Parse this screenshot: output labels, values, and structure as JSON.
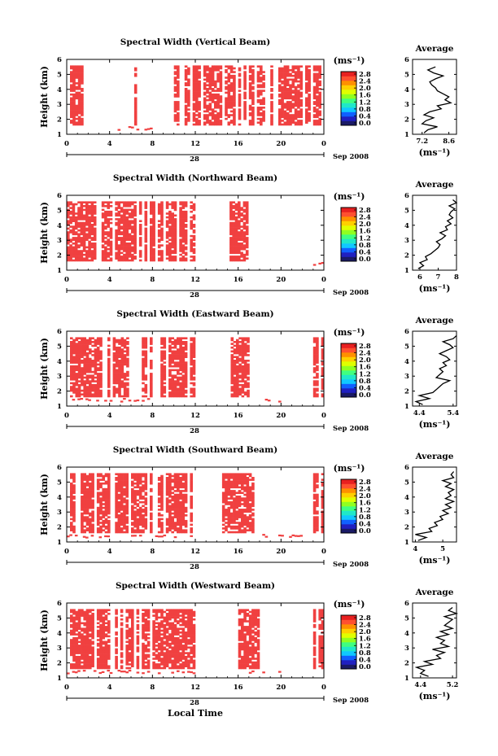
{
  "figure": {
    "xlabel": "Local Time",
    "date_label": "Sep 2008",
    "day_tick_label": "28",
    "unit_label": "(ms⁻¹)"
  },
  "chart_data": [
    {
      "type": "heatmap",
      "title": "Spectral Width (Vertical Beam)",
      "xlabel": "",
      "ylabel": "Height (km)",
      "x_ticks": [
        "0",
        "4",
        "8",
        "12",
        "16",
        "20",
        "0"
      ],
      "y_ticks": [
        "1",
        "2",
        "3",
        "4",
        "5",
        "6"
      ],
      "xlim": [
        0,
        24
      ],
      "ylim": [
        1,
        6
      ],
      "grid": false,
      "colorbar": {
        "ticks": [
          "0.0",
          "0.4",
          "0.8",
          "1.2",
          "1.6",
          "2.0",
          "2.4",
          "2.8"
        ],
        "range": [
          0.0,
          2.8
        ]
      },
      "dominant_value": 2.8,
      "echo_time_blocks_hr": [
        [
          0.3,
          1.5
        ],
        [
          6.3,
          6.5
        ],
        [
          10.0,
          10.5
        ],
        [
          11.0,
          18.5
        ],
        [
          19.0,
          24.0
        ]
      ],
      "low_height_echoes_hr": [
        [
          4.5,
          8.0
        ]
      ],
      "average": {
        "title": "Average",
        "xlabel": "(ms⁻¹)",
        "ylabel": "",
        "x_ticks": [
          "7.2",
          "8.6"
        ],
        "xlim": [
          6.7,
          9.0
        ],
        "ylim": [
          1,
          6
        ],
        "height_km": [
          1.1,
          1.3,
          1.5,
          1.7,
          1.9,
          2.1,
          2.3,
          2.5,
          2.7,
          2.9,
          3.1,
          3.3,
          3.5,
          3.7,
          3.9,
          4.1,
          4.3,
          4.5,
          4.7,
          4.9,
          5.1,
          5.3,
          5.5
        ],
        "mean_width": [
          7.3,
          7.5,
          8.0,
          7.2,
          7.4,
          7.8,
          7.3,
          7.6,
          8.2,
          8.0,
          8.7,
          8.4,
          8.6,
          8.3,
          8.0,
          7.9,
          7.7,
          7.6,
          7.9,
          8.3,
          7.8,
          7.5,
          7.9
        ]
      }
    },
    {
      "type": "heatmap",
      "title": "Spectral Width (Northward Beam)",
      "xlabel": "",
      "ylabel": "Height (km)",
      "x_ticks": [
        "0",
        "4",
        "8",
        "12",
        "16",
        "20",
        "0"
      ],
      "y_ticks": [
        "1",
        "2",
        "3",
        "4",
        "5",
        "6"
      ],
      "xlim": [
        0,
        24
      ],
      "ylim": [
        1,
        6
      ],
      "grid": false,
      "colorbar": {
        "ticks": [
          "0.0",
          "0.4",
          "0.8",
          "1.2",
          "1.6",
          "2.0",
          "2.4",
          "2.8"
        ],
        "range": [
          0.0,
          2.8
        ]
      },
      "dominant_value": 2.8,
      "echo_time_blocks_hr": [
        [
          0.0,
          3.5
        ],
        [
          3.5,
          7.0
        ],
        [
          7.0,
          12.0
        ],
        [
          15.2,
          16.8
        ]
      ],
      "low_height_echoes_hr": [
        [
          23.0,
          24.0
        ]
      ],
      "average": {
        "title": "Average",
        "xlabel": "(ms⁻¹)",
        "ylabel": "",
        "x_ticks": [
          "6",
          "7",
          "8"
        ],
        "xlim": [
          5.6,
          8.0
        ],
        "ylim": [
          1,
          6
        ],
        "height_km": [
          1.1,
          1.3,
          1.5,
          1.7,
          1.9,
          2.1,
          2.3,
          2.5,
          2.7,
          2.9,
          3.1,
          3.3,
          3.5,
          3.7,
          3.9,
          4.1,
          4.3,
          4.5,
          4.7,
          4.9,
          5.1,
          5.3,
          5.5,
          5.7
        ],
        "mean_width": [
          5.9,
          6.2,
          6.0,
          6.4,
          6.3,
          6.6,
          6.8,
          7.0,
          7.1,
          6.9,
          7.2,
          7.4,
          7.1,
          7.5,
          7.4,
          7.7,
          7.5,
          7.8,
          7.6,
          7.7,
          7.9,
          7.6,
          8.0,
          7.8
        ]
      }
    },
    {
      "type": "heatmap",
      "title": "Spectral Width (Eastward Beam)",
      "xlabel": "",
      "ylabel": "Height (km)",
      "x_ticks": [
        "0",
        "4",
        "8",
        "12",
        "16",
        "20",
        "0"
      ],
      "y_ticks": [
        "1",
        "2",
        "3",
        "4",
        "5",
        "6"
      ],
      "xlim": [
        0,
        24
      ],
      "ylim": [
        1,
        6
      ],
      "grid": false,
      "colorbar": {
        "ticks": [
          "0.0",
          "0.4",
          "0.8",
          "1.2",
          "1.6",
          "2.0",
          "2.4",
          "2.8"
        ],
        "range": [
          0.0,
          2.8
        ]
      },
      "dominant_value": 2.8,
      "echo_time_blocks_hr": [
        [
          0.3,
          6.0
        ],
        [
          7.0,
          11.8
        ],
        [
          15.3,
          17.0
        ],
        [
          23.0,
          24.0
        ]
      ],
      "low_height_echoes_hr": [
        [
          0.5,
          8.0
        ],
        [
          16.0,
          20.0
        ]
      ],
      "average": {
        "title": "Average",
        "xlabel": "(ms⁻¹)",
        "ylabel": "",
        "x_ticks": [
          "4.4",
          "5.4"
        ],
        "xlim": [
          4.2,
          5.5
        ],
        "ylim": [
          1,
          6
        ],
        "height_km": [
          1.1,
          1.3,
          1.5,
          1.7,
          1.9,
          2.1,
          2.3,
          2.5,
          2.7,
          2.9,
          3.1,
          3.3,
          3.5,
          3.7,
          3.9,
          4.1,
          4.3,
          4.5,
          4.7,
          4.9,
          5.1,
          5.3,
          5.5,
          5.7
        ],
        "mean_width": [
          4.5,
          4.3,
          4.7,
          4.4,
          4.8,
          4.9,
          5.0,
          5.1,
          5.3,
          4.9,
          5.0,
          5.1,
          5.0,
          5.2,
          5.1,
          5.3,
          5.2,
          5.0,
          5.2,
          5.4,
          5.3,
          5.1,
          5.4,
          5.5
        ]
      }
    },
    {
      "type": "heatmap",
      "title": "Spectral Width (Southward Beam)",
      "xlabel": "",
      "ylabel": "Height (km)",
      "x_ticks": [
        "0",
        "4",
        "8",
        "12",
        "16",
        "20",
        "0"
      ],
      "y_ticks": [
        "1",
        "2",
        "3",
        "4",
        "5",
        "6"
      ],
      "xlim": [
        0,
        24
      ],
      "ylim": [
        1,
        6
      ],
      "grid": false,
      "colorbar": {
        "ticks": [
          "0.0",
          "0.4",
          "0.8",
          "1.2",
          "1.6",
          "2.0",
          "2.4",
          "2.8"
        ],
        "range": [
          0.0,
          2.8
        ]
      },
      "dominant_value": 2.8,
      "echo_time_blocks_hr": [
        [
          0.3,
          4.0
        ],
        [
          4.5,
          8.0
        ],
        [
          8.5,
          12.0
        ],
        [
          14.5,
          17.5
        ],
        [
          23.0,
          24.0
        ]
      ],
      "low_height_echoes_hr": [
        [
          0.0,
          12.0
        ],
        [
          17.5,
          22.0
        ]
      ],
      "average": {
        "title": "Average",
        "xlabel": "(ms⁻¹)",
        "ylabel": "",
        "x_ticks": [
          "4",
          "5"
        ],
        "xlim": [
          3.9,
          5.5
        ],
        "ylim": [
          1,
          6
        ],
        "height_km": [
          1.1,
          1.3,
          1.5,
          1.7,
          1.9,
          2.1,
          2.3,
          2.5,
          2.7,
          2.9,
          3.1,
          3.3,
          3.5,
          3.7,
          3.9,
          4.1,
          4.3,
          4.5,
          4.7,
          4.9,
          5.1,
          5.3,
          5.5,
          5.7
        ],
        "mean_width": [
          4.1,
          4.4,
          4.0,
          4.6,
          4.5,
          4.8,
          4.7,
          5.0,
          4.9,
          5.2,
          5.0,
          5.3,
          5.1,
          5.4,
          5.1,
          5.3,
          5.2,
          5.4,
          5.1,
          5.3,
          5.0,
          5.4,
          5.3,
          5.4
        ]
      }
    },
    {
      "type": "heatmap",
      "title": "Spectral Width (Westward Beam)",
      "xlabel": "Local Time",
      "ylabel": "Height (km)",
      "x_ticks": [
        "0",
        "4",
        "8",
        "12",
        "16",
        "20",
        "0"
      ],
      "y_ticks": [
        "1",
        "2",
        "3",
        "4",
        "5",
        "6"
      ],
      "xlim": [
        0,
        24
      ],
      "ylim": [
        1,
        6
      ],
      "grid": false,
      "colorbar": {
        "ticks": [
          "0.0",
          "0.4",
          "0.8",
          "1.2",
          "1.6",
          "2.0",
          "2.4",
          "2.8"
        ],
        "range": [
          0.0,
          2.8
        ]
      },
      "dominant_value": 2.8,
      "echo_time_blocks_hr": [
        [
          0.3,
          4.0
        ],
        [
          4.5,
          8.5
        ],
        [
          8.5,
          12.0
        ],
        [
          16.0,
          18.0
        ],
        [
          23.0,
          24.0
        ]
      ],
      "low_height_echoes_hr": [
        [
          0.0,
          12.0
        ],
        [
          17.0,
          20.0
        ]
      ],
      "average": {
        "title": "Average",
        "xlabel": "(ms⁻¹)",
        "ylabel": "",
        "x_ticks": [
          "4.4",
          "5.2"
        ],
        "xlim": [
          4.2,
          5.3
        ],
        "ylim": [
          1,
          6
        ],
        "height_km": [
          1.1,
          1.3,
          1.5,
          1.7,
          1.9,
          2.1,
          2.3,
          2.5,
          2.7,
          2.9,
          3.1,
          3.3,
          3.5,
          3.7,
          3.9,
          4.1,
          4.3,
          4.5,
          4.7,
          4.9,
          5.1,
          5.3,
          5.5,
          5.7
        ],
        "mean_width": [
          4.6,
          4.4,
          4.5,
          4.3,
          4.7,
          4.5,
          4.9,
          4.8,
          5.0,
          4.7,
          5.1,
          4.9,
          5.0,
          4.8,
          5.1,
          4.9,
          5.2,
          5.0,
          5.1,
          5.2,
          5.0,
          5.3,
          5.1,
          5.2
        ]
      }
    }
  ]
}
